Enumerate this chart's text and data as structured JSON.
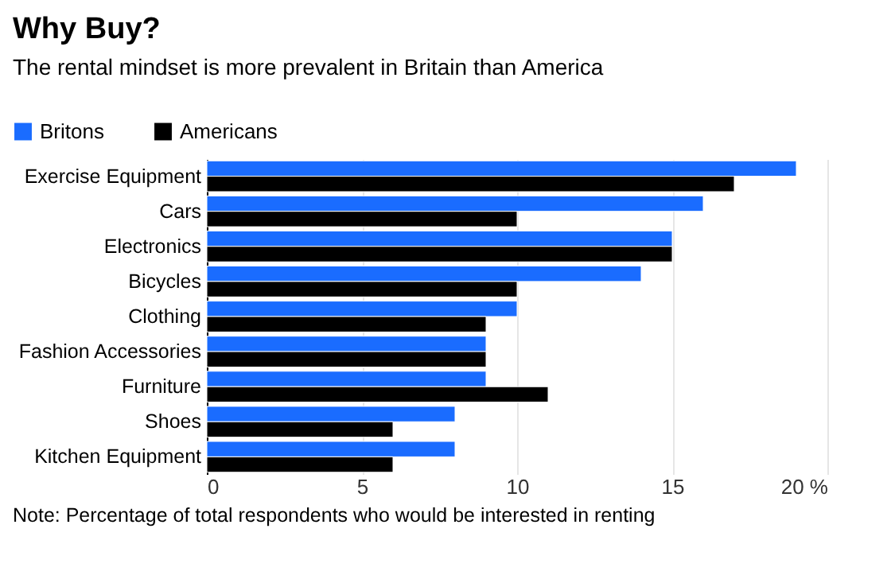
{
  "chart_data": {
    "type": "bar",
    "orientation": "horizontal",
    "title": "Why Buy?",
    "subtitle": "The rental mindset is more prevalent in Britain than America",
    "categories": [
      "Exercise Equipment",
      "Cars",
      "Electronics",
      "Bicycles",
      "Clothing",
      "Fashion Accessories",
      "Furniture",
      "Shoes",
      "Kitchen Equipment"
    ],
    "series": [
      {
        "name": "Britons",
        "color": "#1a6cff",
        "values": [
          19,
          16,
          15,
          14,
          10,
          9,
          9,
          8,
          8
        ]
      },
      {
        "name": "Americans",
        "color": "#000000",
        "values": [
          17,
          10,
          15,
          10,
          9,
          9,
          11,
          6,
          6
        ]
      }
    ],
    "xlim": [
      0,
      20
    ],
    "xticks": [
      0,
      5,
      10,
      15,
      {
        "value": 20,
        "label": "20 %"
      }
    ],
    "grid": "x",
    "legend": "top left",
    "annotations": [
      "Note: Percentage of total respondents who would be interested in renting"
    ]
  }
}
